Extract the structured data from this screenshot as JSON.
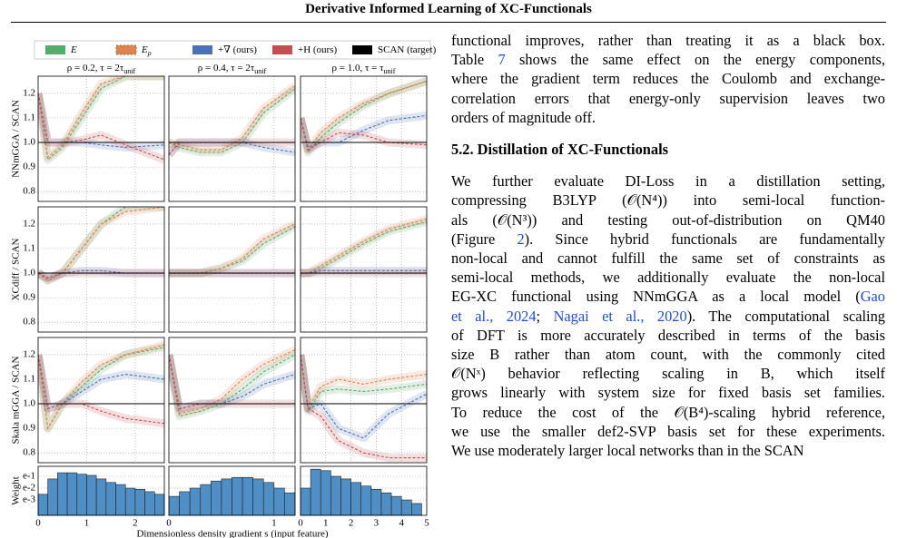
{
  "header": {
    "title": "Derivative Informed Learning of XC-Functionals"
  },
  "figure": {
    "type": "line",
    "legend": [
      {
        "name": [
          "E"
        ],
        "color": "#5aa86a"
      },
      {
        "name": [
          "E",
          "ρ"
        ],
        "color": "#dd8452"
      },
      {
        "name": [
          "+∇ (ours)"
        ],
        "color": "#4c72b0"
      },
      {
        "name": [
          "+H (ours)"
        ],
        "color": "#c44e52"
      },
      {
        "name": [
          "SCAN (target)"
        ],
        "color": "#000000"
      }
    ],
    "columns": [
      {
        "title": [
          "ρ = 0.2, τ = 2τ",
          "unif"
        ],
        "xlim": [
          0,
          2.6
        ],
        "xticks": [
          0,
          1,
          2
        ],
        "x": [
          0,
          0.2,
          0.5,
          0.9,
          1.3,
          1.8,
          2.6
        ]
      },
      {
        "title": [
          "ρ = 0.4, τ = 2τ",
          "unif"
        ],
        "xlim": [
          0,
          1.2
        ],
        "xticks": [
          0,
          1
        ],
        "x": [
          0,
          0.1,
          0.3,
          0.5,
          0.7,
          0.9,
          1.2
        ]
      },
      {
        "title": [
          "ρ = 1.0, τ = τ",
          "unif"
        ],
        "xlim": [
          0,
          5
        ],
        "xticks": [
          0,
          1,
          2,
          3,
          4,
          5
        ],
        "x": [
          0,
          0.3,
          0.8,
          1.5,
          2.5,
          3.5,
          5
        ]
      }
    ],
    "ylim": [
      0.76,
      1.27
    ],
    "yticks": [
      0.8,
      0.9,
      {
        "value": 1,
        "label": "1.0"
      },
      1.1,
      1.2
    ],
    "grid": true,
    "rows": [
      {
        "ylabel": "NNmGGA / SCAN",
        "panels": [
          {
            "series": [
              [
                1.2,
                0.93,
                0.98,
                1.1,
                1.22,
                1.27,
                1.27
              ],
              [
                1.2,
                0.94,
                0.99,
                1.12,
                1.24,
                1.27,
                1.27
              ],
              [
                1.2,
                1.0,
                1.0,
                1.0,
                0.99,
                0.98,
                0.99
              ],
              [
                1.2,
                1.0,
                1.0,
                1.01,
                1.03,
                0.99,
                0.93
              ],
              [
                1,
                1,
                1,
                1,
                1,
                1,
                1
              ]
            ]
          },
          {
            "series": [
              [
                1.0,
                0.98,
                0.96,
                0.96,
                1.0,
                1.12,
                1.22
              ],
              [
                1.0,
                0.99,
                0.97,
                0.97,
                1.02,
                1.14,
                1.23
              ],
              [
                0.95,
                1.0,
                1.0,
                1.0,
                1.0,
                0.98,
                0.96
              ],
              [
                0.95,
                1.0,
                1.0,
                1.0,
                1.0,
                1.0,
                1.0
              ],
              [
                1,
                1,
                1,
                1,
                1,
                1,
                1
              ]
            ]
          },
          {
            "series": [
              [
                1.1,
                0.96,
                1.02,
                1.08,
                1.15,
                1.2,
                1.25
              ],
              [
                1.1,
                0.97,
                1.04,
                1.1,
                1.16,
                1.2,
                1.25
              ],
              [
                1.1,
                0.98,
                1.0,
                1.0,
                1.05,
                1.09,
                1.11
              ],
              [
                1.1,
                0.97,
                1.0,
                1.04,
                1.03,
                1.0,
                0.99
              ],
              [
                1,
                1,
                1,
                1,
                1,
                1,
                1
              ]
            ]
          }
        ]
      },
      {
        "ylabel": "XCdiff / SCAN",
        "panels": [
          {
            "series": [
              [
                1.0,
                0.97,
                1.0,
                1.1,
                1.2,
                1.27,
                1.27
              ],
              [
                1.0,
                0.97,
                1.0,
                1.1,
                1.2,
                1.25,
                1.27
              ],
              [
                1.0,
                0.98,
                1.0,
                1.01,
                1.01,
                1.0,
                1.0
              ],
              [
                1.0,
                0.98,
                1.0,
                1.0,
                1.0,
                1.0,
                1.0
              ],
              [
                1,
                1,
                1,
                1,
                1,
                1,
                1
              ]
            ]
          },
          {
            "series": [
              [
                1.0,
                1.0,
                1.0,
                1.02,
                1.05,
                1.12,
                1.19
              ],
              [
                1.0,
                1.0,
                1.0,
                1.02,
                1.06,
                1.14,
                1.2
              ],
              [
                1,
                1,
                1,
                1,
                1,
                1,
                1
              ],
              [
                1,
                1,
                1,
                1,
                1,
                1,
                1
              ],
              [
                1,
                1,
                1,
                1,
                1,
                1,
                1
              ]
            ]
          },
          {
            "series": [
              [
                1.0,
                1.0,
                1.02,
                1.06,
                1.12,
                1.17,
                1.21
              ],
              [
                1.0,
                1.0,
                1.03,
                1.07,
                1.13,
                1.18,
                1.22
              ],
              [
                1.0,
                1.0,
                1.01,
                1.01,
                1.01,
                1.01,
                1.01
              ],
              [
                1,
                1,
                1,
                1,
                1,
                1,
                1
              ],
              [
                1,
                1,
                1,
                1,
                1,
                1,
                1
              ]
            ]
          }
        ]
      },
      {
        "ylabel": "Skala mGGA / SCAN",
        "panels": [
          {
            "series": [
              [
                1.2,
                0.9,
                1.0,
                1.07,
                1.14,
                1.2,
                1.23
              ],
              [
                1.2,
                0.9,
                1.0,
                1.09,
                1.16,
                1.2,
                1.24
              ],
              [
                1.2,
                0.98,
                1.0,
                1.05,
                1.1,
                1.12,
                1.1
              ],
              [
                1.2,
                0.98,
                1.0,
                1.0,
                0.97,
                0.94,
                0.92
              ],
              [
                1,
                1,
                1,
                1,
                1,
                1,
                1
              ]
            ]
          },
          {
            "series": [
              [
                1.2,
                0.95,
                0.97,
                1.0,
                1.06,
                1.13,
                1.2
              ],
              [
                1.2,
                0.96,
                0.98,
                1.02,
                1.1,
                1.16,
                1.22
              ],
              [
                1.2,
                0.98,
                1.0,
                1.0,
                1.03,
                1.08,
                1.12
              ],
              [
                1.2,
                0.98,
                1.0,
                1.0,
                1.0,
                1.0,
                1.0
              ],
              [
                1,
                1,
                1,
                1,
                1,
                1,
                1
              ]
            ]
          },
          {
            "series": [
              [
                1.2,
                0.97,
                1.05,
                1.06,
                1.05,
                1.06,
                1.08
              ],
              [
                1.2,
                0.98,
                1.07,
                1.1,
                1.08,
                1.1,
                1.12
              ],
              [
                1.2,
                0.98,
                1.0,
                0.9,
                0.86,
                0.96,
                1.04
              ],
              [
                1.2,
                0.98,
                0.95,
                0.85,
                0.8,
                0.78,
                0.78
              ],
              [
                1,
                1,
                1,
                1,
                1,
                1,
                1
              ]
            ]
          }
        ]
      }
    ],
    "hist": {
      "type": "histogram",
      "ylabel": "Weight",
      "log": true,
      "color": "#4f8fc6",
      "ylim": [
        5e-05,
        0.7
      ],
      "yticks": [
        {
          "value": 0.1,
          "label": "e-1"
        },
        {
          "value": 0.01,
          "label": "e-2"
        },
        {
          "value": 0.001,
          "label": "e-3"
        }
      ],
      "panels": [
        {
          "bins": [
            0,
            0.2,
            0.4,
            0.6,
            0.8,
            1.0,
            1.2,
            1.4,
            1.6,
            1.8,
            2.0,
            2.2,
            2.4,
            2.6
          ],
          "values": [
            0.003,
            0.06,
            0.2,
            0.2,
            0.15,
            0.12,
            0.06,
            0.03,
            0.02,
            0.01,
            0.008,
            0.005,
            0.003
          ]
        },
        {
          "bins": [
            0,
            0.1,
            0.2,
            0.3,
            0.4,
            0.5,
            0.6,
            0.7,
            0.8,
            0.9,
            1.0,
            1.1,
            1.2
          ],
          "values": [
            0.002,
            0.005,
            0.01,
            0.02,
            0.04,
            0.06,
            0.08,
            0.08,
            0.06,
            0.03,
            0.01,
            0.004
          ]
        },
        {
          "bins": [
            0,
            0.4,
            0.8,
            1.2,
            1.6,
            2.0,
            2.4,
            2.8,
            3.2,
            3.6,
            4.0,
            4.4,
            4.8
          ],
          "values": [
            0.01,
            0.4,
            0.3,
            0.1,
            0.06,
            0.03,
            0.015,
            0.008,
            0.004,
            0.002,
            0.001,
            0.0005
          ]
        }
      ]
    },
    "xlabel": "Dimensionless density gradient s (input feature)"
  },
  "body": {
    "paragraphs": [
      {
        "lines": [
          [
            "functional improves, rather than treating it as a black box."
          ],
          [
            "Table ",
            [
              "7"
            ],
            " shows the same effect on the energy components,"
          ],
          [
            "where the gradient term reduces the Coulomb and exchange-"
          ],
          [
            "correlation errors that energy-only supervision leaves two"
          ],
          [
            "orders of magnitude off."
          ]
        ]
      },
      {
        "heading": "5.2. Distillation of XC-Functionals",
        "lines": [
          [
            "We further evaluate DI-Loss in a distillation setting,"
          ],
          [
            "compressing B3LYP (𝒪(N⁴)) into semi-local function-"
          ],
          [
            "als (𝒪(N³)) and testing out-of-distribution on QM40"
          ],
          [
            "(Figure ",
            [
              "2"
            ],
            ").  Since hybrid functionals are fundamentally"
          ],
          [
            "non-local and cannot fulfill the same set of constraints as"
          ],
          [
            "semi-local methods, we additionally evaluate the non-local"
          ],
          [
            "EG-XC functional using NNmGGA as a local model (",
            [
              "Gao"
            ]
          ],
          [
            [
              "et al., 2024"
            ],
            "; ",
            [
              "Nagai et al., 2020"
            ],
            "). The computational scaling"
          ],
          [
            "of DFT is more accurately described in terms of the basis"
          ],
          [
            "size B rather than atom count, with the commonly cited"
          ],
          [
            "𝒪(Nˣ) behavior reflecting scaling in B, which itself"
          ],
          [
            "grows linearly with system size for fixed basis set families."
          ],
          [
            "To reduce the cost of the 𝒪(B⁴)-scaling hybrid reference,"
          ],
          [
            "we use the smaller def2-SVP basis set for these experiments."
          ],
          [
            "We use moderately larger local networks than in the SCAN"
          ]
        ]
      }
    ]
  }
}
